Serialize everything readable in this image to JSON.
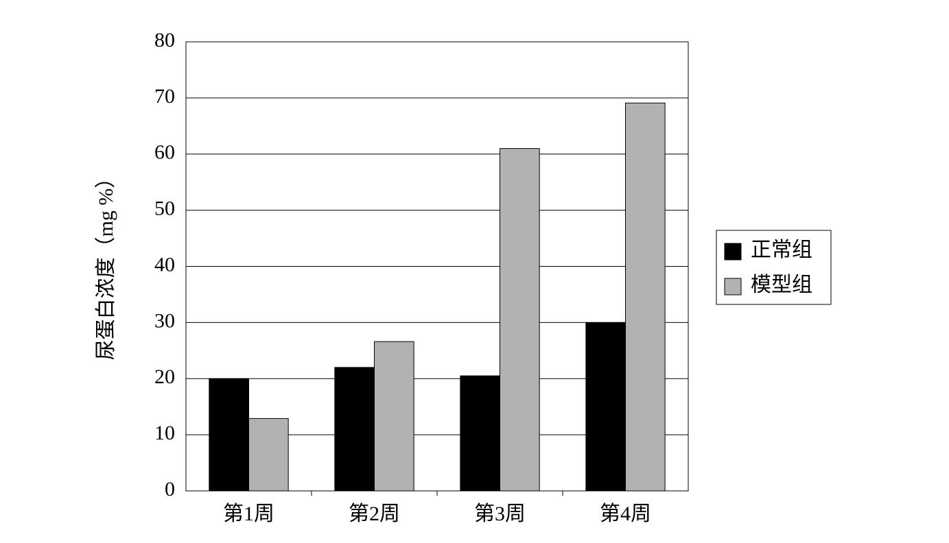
{
  "chart_data": {
    "type": "bar",
    "y_label": "尿蛋白浓度（mg %）",
    "categories": [
      "第1周",
      "第2周",
      "第3周",
      "第4周"
    ],
    "series": [
      {
        "name": "正常组",
        "color": "#000000",
        "values": [
          20.0,
          22.0,
          20.5,
          30.0
        ]
      },
      {
        "name": "模型组",
        "color": "#b2b2b2",
        "values": [
          12.9,
          26.6,
          61.0,
          69.1
        ]
      }
    ],
    "ylim": [
      0,
      80
    ],
    "yticks": [
      0,
      10,
      20,
      30,
      40,
      50,
      60,
      70,
      80
    ],
    "grid": true,
    "legend": "right"
  }
}
